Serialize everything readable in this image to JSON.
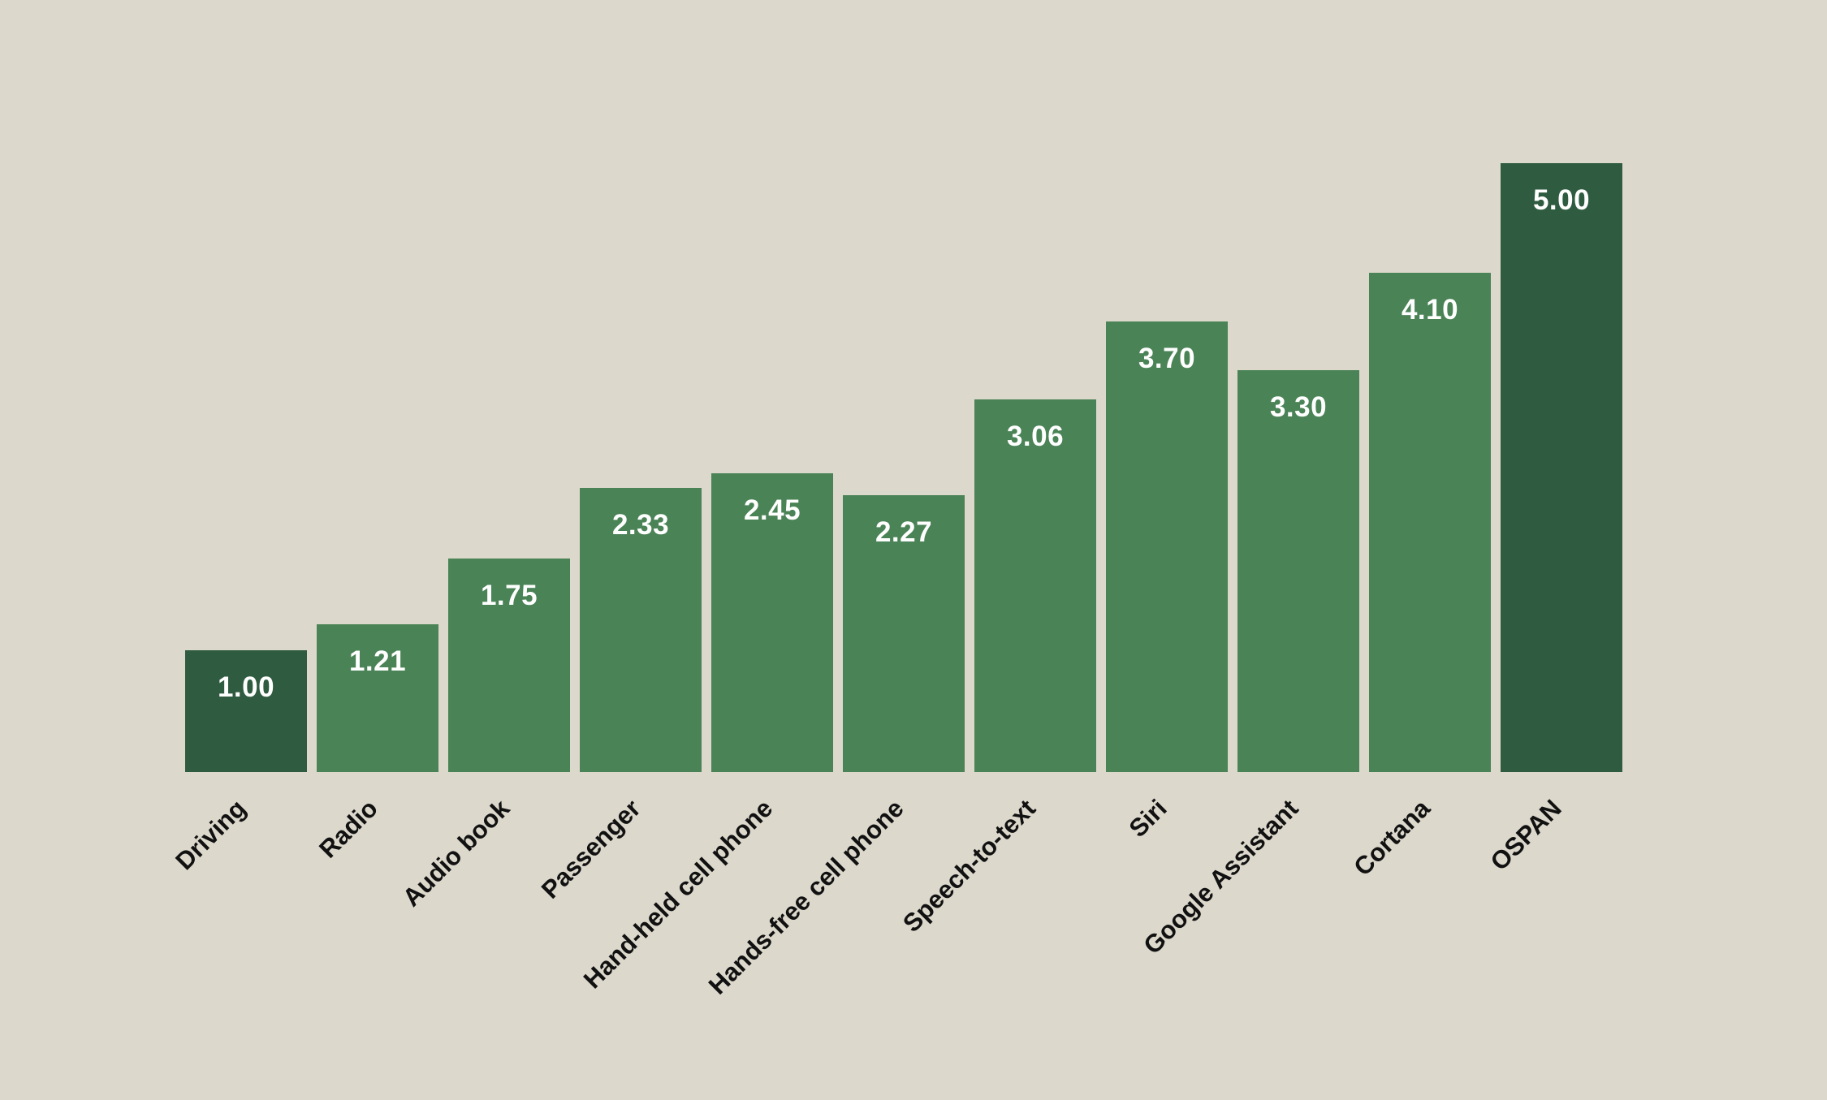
{
  "chart_data": {
    "type": "bar",
    "title": "",
    "xlabel": "",
    "ylabel": "",
    "ylim": [
      0,
      5
    ],
    "grid": false,
    "legend": null,
    "categories": [
      "Driving",
      "Radio",
      "Audio book",
      "Passenger",
      "Hand-held cell phone",
      "Hands-free cell phone",
      "Speech-to-text",
      "Siri",
      "Google Assistant",
      "Cortana",
      "OSPAN"
    ],
    "values": [
      1.0,
      1.21,
      1.75,
      2.33,
      2.45,
      2.27,
      3.06,
      3.7,
      3.3,
      4.1,
      5.0
    ],
    "value_labels": [
      "1.00",
      "1.21",
      "1.75",
      "2.33",
      "2.45",
      "2.27",
      "3.06",
      "3.70",
      "3.30",
      "4.10",
      "5.00"
    ],
    "highlighted": [
      "Driving",
      "OSPAN"
    ]
  },
  "colors": {
    "background": "#dcd8cc",
    "bar": "#4a8356",
    "bar_highlight": "#2f5c40",
    "value_text": "#ffffff",
    "label_text": "#111111"
  }
}
